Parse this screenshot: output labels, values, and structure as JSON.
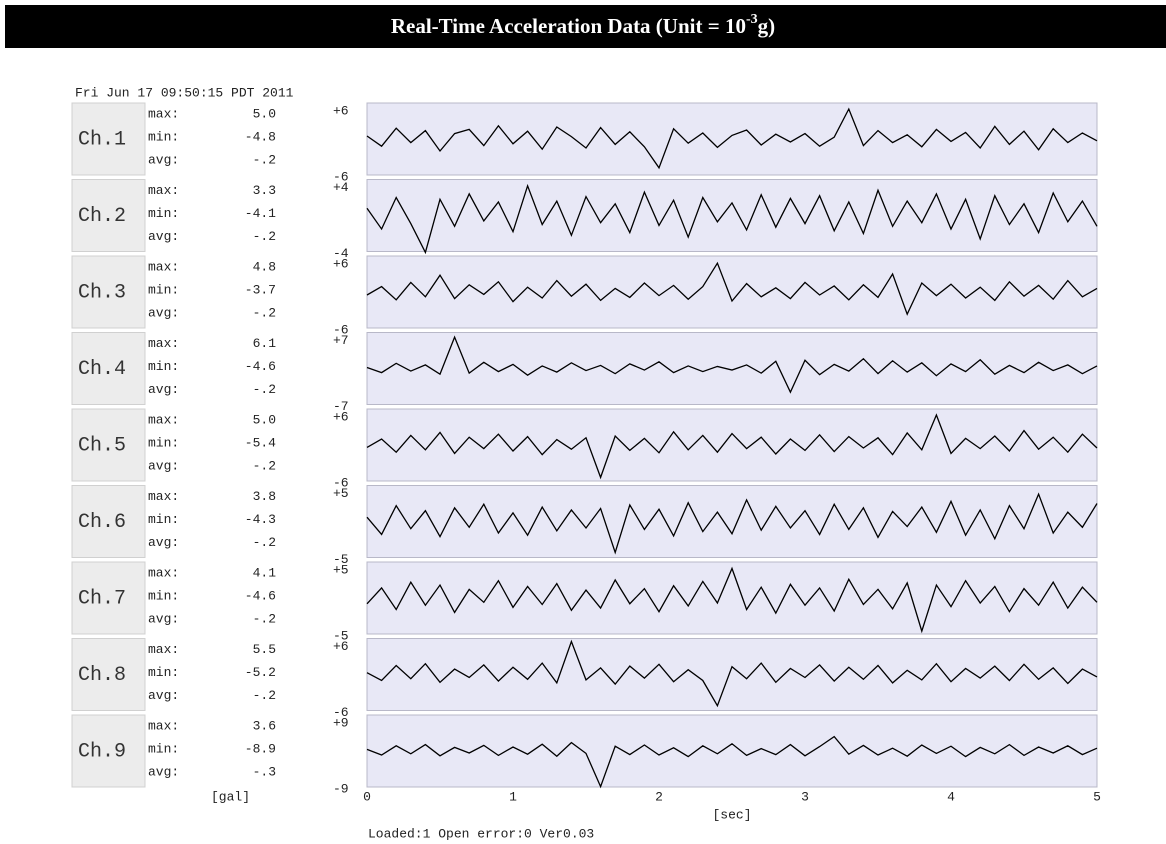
{
  "header": {
    "title": "Real-Time Acceleration Data (Unit = 10",
    "title_superscript": "-3",
    "title_end": "g)"
  },
  "timestamp": "Fri Jun 17 09:50:15 PDT 2011",
  "units_label": "[gal]",
  "status": "Loaded:1 Open error:0 Ver0.03",
  "chart_data": {
    "type": "line",
    "color": "#000000",
    "xlabel": "[sec]",
    "xlim": [
      0,
      5
    ],
    "xticks": [
      0,
      1,
      2,
      3,
      4,
      5
    ],
    "x": [
      0,
      0.1,
      0.2,
      0.3,
      0.4,
      0.5,
      0.6,
      0.7,
      0.8,
      0.9,
      1,
      1.1,
      1.2,
      1.3,
      1.4,
      1.5,
      1.6,
      1.7,
      1.8,
      1.9,
      2,
      2.1,
      2.2,
      2.3,
      2.4,
      2.5,
      2.6,
      2.7,
      2.8,
      2.9,
      3,
      3.1,
      3.2,
      3.3,
      3.4,
      3.5,
      3.6,
      3.7,
      3.8,
      3.9,
      4,
      4.1,
      4.2,
      4.3,
      4.4,
      4.5,
      4.6,
      4.7,
      4.8,
      4.9,
      5
    ],
    "series": [
      {
        "name": "Ch.1",
        "stats": [
          {
            "label": "max:",
            "value": "5.0"
          },
          {
            "label": "min:",
            "value": "-4.8"
          },
          {
            "label": "avg:",
            "value": "-.2"
          }
        ],
        "ylim": [
          -6,
          6
        ],
        "yticks": [
          -6,
          {
            "value": 6,
            "label": "+6"
          }
        ],
        "values": [
          0.5,
          -1.2,
          1.8,
          -0.6,
          1.4,
          -2.0,
          0.9,
          1.6,
          -1.1,
          2.2,
          -0.8,
          1.3,
          -1.7,
          2.0,
          0.4,
          -1.5,
          1.9,
          -0.9,
          1.2,
          -1.3,
          -4.8,
          1.7,
          -0.7,
          1.0,
          -1.4,
          0.6,
          1.5,
          -1.0,
          0.8,
          -0.5,
          0.9,
          -1.2,
          0.3,
          5.0,
          -1.1,
          1.4,
          -0.6,
          0.7,
          -1.3,
          1.6,
          -0.4,
          1.1,
          -1.5,
          2.1,
          -0.9,
          1.3,
          -1.8,
          1.7,
          -0.6,
          1.0,
          -0.3
        ]
      },
      {
        "name": "Ch.2",
        "stats": [
          {
            "label": "max:",
            "value": "3.3"
          },
          {
            "label": "min:",
            "value": "-4.1"
          },
          {
            "label": "avg:",
            "value": "-.2"
          }
        ],
        "ylim": [
          -4,
          4
        ],
        "yticks": [
          -4,
          {
            "value": 4,
            "label": "+4"
          }
        ],
        "values": [
          0.8,
          -1.5,
          2.0,
          -0.9,
          -4.1,
          1.8,
          -1.2,
          2.4,
          -0.6,
          1.5,
          -1.8,
          3.3,
          -1.0,
          1.6,
          -2.2,
          2.1,
          -0.8,
          1.3,
          -1.9,
          2.6,
          -1.1,
          1.7,
          -2.4,
          2.0,
          -0.7,
          1.4,
          -1.6,
          2.3,
          -1.3,
          1.9,
          -0.9,
          2.2,
          -1.7,
          1.5,
          -2.0,
          2.8,
          -1.2,
          1.6,
          -0.8,
          2.4,
          -1.5,
          1.8,
          -2.6,
          2.2,
          -1.0,
          1.3,
          -1.9,
          2.5,
          -0.7,
          1.6,
          -1.2
        ]
      },
      {
        "name": "Ch.3",
        "stats": [
          {
            "label": "max:",
            "value": "4.8"
          },
          {
            "label": "min:",
            "value": "-3.7"
          },
          {
            "label": "avg:",
            "value": "-.2"
          }
        ],
        "ylim": [
          -6,
          6
        ],
        "yticks": [
          -6,
          {
            "value": 6,
            "label": "+6"
          }
        ],
        "values": [
          -0.5,
          0.9,
          -1.3,
          1.6,
          -0.8,
          2.8,
          -1.1,
          1.2,
          -0.4,
          1.7,
          -1.6,
          0.8,
          -1.0,
          1.9,
          -0.7,
          1.3,
          -1.4,
          0.6,
          -0.9,
          1.5,
          -0.6,
          1.1,
          -1.2,
          0.9,
          4.8,
          -1.5,
          1.4,
          -0.8,
          0.7,
          -1.1,
          1.6,
          -0.5,
          1.0,
          -1.3,
          1.2,
          -0.9,
          3.0,
          -3.7,
          1.5,
          -0.6,
          1.3,
          -1.0,
          0.8,
          -1.4,
          1.7,
          -0.7,
          1.1,
          -1.2,
          1.9,
          -0.8,
          0.6
        ]
      },
      {
        "name": "Ch.4",
        "stats": [
          {
            "label": "max:",
            "value": "6.1"
          },
          {
            "label": "min:",
            "value": "-4.6"
          },
          {
            "label": "avg:",
            "value": "-.2"
          }
        ],
        "ylim": [
          -7,
          7
        ],
        "yticks": [
          -7,
          {
            "value": 7,
            "label": "+7"
          }
        ],
        "values": [
          0.2,
          -0.8,
          1.0,
          -0.5,
          0.7,
          -1.1,
          6.1,
          -0.9,
          1.2,
          -0.6,
          0.8,
          -1.3,
          0.5,
          -0.7,
          1.1,
          -0.4,
          0.6,
          -1.0,
          0.9,
          -0.3,
          1.3,
          -0.8,
          0.5,
          -0.6,
          0.4,
          -0.3,
          0.7,
          -0.9,
          1.4,
          -4.6,
          1.6,
          -1.2,
          0.8,
          -0.5,
          1.9,
          -1.0,
          1.5,
          -0.7,
          1.1,
          -1.4,
          0.9,
          -0.6,
          1.7,
          -1.1,
          0.6,
          -0.8,
          1.2,
          -0.4,
          0.7,
          -1.0,
          0.5
        ]
      },
      {
        "name": "Ch.5",
        "stats": [
          {
            "label": "max:",
            "value": "5.0"
          },
          {
            "label": "min:",
            "value": "-5.4"
          },
          {
            "label": "avg:",
            "value": "-.2"
          }
        ],
        "ylim": [
          -6,
          6
        ],
        "yticks": [
          -6,
          {
            "value": 6,
            "label": "+6"
          }
        ],
        "values": [
          -0.4,
          1.0,
          -1.2,
          1.6,
          -0.8,
          2.1,
          -1.4,
          1.3,
          -0.6,
          1.8,
          -1.0,
          1.4,
          -1.6,
          0.9,
          -0.7,
          1.2,
          -5.4,
          1.5,
          -0.9,
          1.1,
          -1.3,
          2.2,
          -0.8,
          1.6,
          -1.2,
          1.9,
          -0.6,
          1.3,
          -1.5,
          1.0,
          -0.9,
          1.7,
          -1.1,
          1.4,
          -0.5,
          1.2,
          -1.6,
          2.0,
          -0.8,
          5.0,
          -1.4,
          1.1,
          -0.6,
          1.5,
          -1.0,
          2.4,
          -0.7,
          1.3,
          -1.2,
          1.8,
          -0.5
        ]
      },
      {
        "name": "Ch.6",
        "stats": [
          {
            "label": "max:",
            "value": "3.8"
          },
          {
            "label": "min:",
            "value": "-4.3"
          },
          {
            "label": "avg:",
            "value": "-.2"
          }
        ],
        "ylim": [
          -5,
          5
        ],
        "yticks": [
          -5,
          {
            "value": 5,
            "label": "+5"
          }
        ],
        "values": [
          0.6,
          -1.8,
          2.2,
          -1.0,
          1.5,
          -2.1,
          1.9,
          -0.8,
          2.4,
          -1.6,
          1.2,
          -1.9,
          2.0,
          -1.3,
          1.6,
          -0.9,
          1.8,
          -4.3,
          2.3,
          -1.1,
          1.7,
          -2.0,
          2.6,
          -1.4,
          1.3,
          -1.7,
          3.0,
          -1.2,
          2.1,
          -0.9,
          1.5,
          -1.8,
          2.4,
          -1.1,
          1.9,
          -2.2,
          1.4,
          -0.7,
          2.0,
          -1.5,
          2.8,
          -1.9,
          1.6,
          -2.4,
          2.2,
          -1.0,
          3.8,
          -1.6,
          1.3,
          -0.8,
          2.5
        ]
      },
      {
        "name": "Ch.7",
        "stats": [
          {
            "label": "max:",
            "value": "4.1"
          },
          {
            "label": "min:",
            "value": "-4.6"
          },
          {
            "label": "avg:",
            "value": "-.2"
          }
        ],
        "ylim": [
          -5,
          5
        ],
        "yticks": [
          -5,
          {
            "value": 5,
            "label": "+5"
          }
        ],
        "values": [
          -0.8,
          1.4,
          -1.6,
          2.2,
          -1.0,
          1.8,
          -2.0,
          1.2,
          -0.6,
          2.4,
          -1.3,
          1.6,
          -0.9,
          2.0,
          -1.7,
          1.1,
          -1.4,
          2.5,
          -0.8,
          1.3,
          -1.9,
          1.7,
          -1.1,
          2.3,
          -0.7,
          4.1,
          -1.6,
          1.5,
          -2.1,
          1.9,
          -1.0,
          1.4,
          -1.8,
          2.6,
          -0.9,
          1.2,
          -1.5,
          2.1,
          -4.6,
          1.8,
          -1.2,
          2.4,
          -0.7,
          1.6,
          -1.9,
          1.3,
          -1.0,
          2.2,
          -1.4,
          1.5,
          -0.6
        ]
      },
      {
        "name": "Ch.8",
        "stats": [
          {
            "label": "max:",
            "value": "5.5"
          },
          {
            "label": "min:",
            "value": "-5.2"
          },
          {
            "label": "avg:",
            "value": "-.2"
          }
        ],
        "ylim": [
          -6,
          6
        ],
        "yticks": [
          -6,
          {
            "value": 6,
            "label": "+6"
          }
        ],
        "values": [
          0.3,
          -1.0,
          1.5,
          -0.7,
          1.8,
          -1.3,
          0.9,
          -0.5,
          1.6,
          -1.1,
          1.2,
          -0.8,
          1.9,
          -1.4,
          5.5,
          -0.9,
          1.1,
          -1.6,
          1.4,
          -0.6,
          1.7,
          -1.2,
          0.8,
          -1.0,
          -5.2,
          1.3,
          -0.7,
          1.9,
          -1.3,
          1.0,
          -0.5,
          1.6,
          -1.1,
          1.2,
          -0.8,
          1.5,
          -1.4,
          0.7,
          -0.9,
          1.8,
          -1.2,
          1.0,
          -0.6,
          1.4,
          -1.0,
          1.7,
          -0.8,
          1.1,
          -1.5,
          0.9,
          -0.4
        ]
      },
      {
        "name": "Ch.9",
        "stats": [
          {
            "label": "max:",
            "value": "3.6"
          },
          {
            "label": "min:",
            "value": "-8.9"
          },
          {
            "label": "avg:",
            "value": "-.3"
          }
        ],
        "ylim": [
          -9,
          9
        ],
        "yticks": [
          -9,
          {
            "value": 9,
            "label": "+9"
          }
        ],
        "values": [
          0.4,
          -1.0,
          1.3,
          -0.7,
          1.6,
          -1.2,
          0.9,
          -0.5,
          1.4,
          -1.1,
          1.0,
          -0.8,
          1.7,
          -1.3,
          2.1,
          -0.6,
          -8.9,
          1.2,
          -0.9,
          1.5,
          -1.0,
          0.8,
          -1.4,
          1.3,
          -0.7,
          1.8,
          -1.1,
          0.6,
          -0.9,
          1.6,
          -1.2,
          1.1,
          3.6,
          -0.8,
          1.4,
          -1.0,
          0.7,
          -1.3,
          1.5,
          -0.6,
          1.2,
          -1.4,
          0.9,
          -0.7,
          1.6,
          -1.1,
          1.0,
          -0.5,
          1.3,
          -0.9,
          0.7
        ]
      }
    ]
  }
}
